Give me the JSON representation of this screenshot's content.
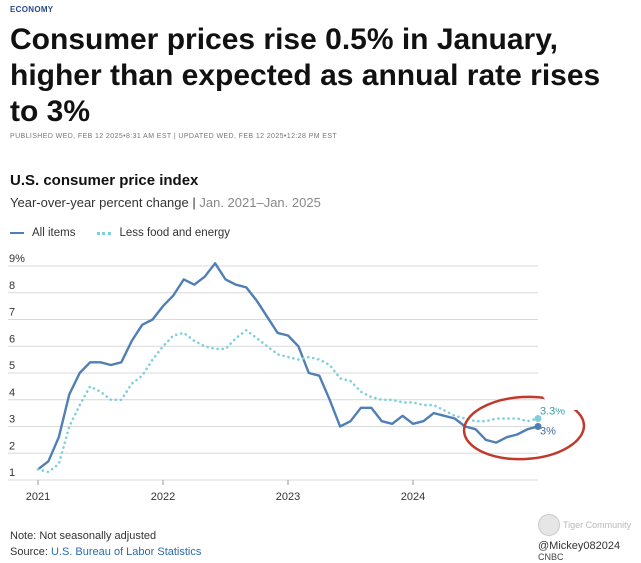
{
  "article": {
    "section": "ECONOMY",
    "headline": "Consumer prices rise 0.5% in January, higher than expected as annual rate rises to 3%",
    "dateline": "PUBLISHED WED, FEB 12 2025•8:31 AM EST | UPDATED WED, FEB 12 2025•12:28 PM EST"
  },
  "chart": {
    "title": "U.S. consumer price index",
    "subtitle": "Year-over-year percent change",
    "subtitle_separator": " | ",
    "subtitle_range": "Jan. 2021–Jan. 2025",
    "note": "Note: Not seasonally adjusted",
    "source_label": "Source: ",
    "source_link": "U.S. Bureau of Labor Statistics"
  },
  "overlays": {
    "watermark": "Tiger Community",
    "username": "@Mickey082024",
    "logo": "CNBC"
  },
  "colors": {
    "all_items": "#4f7fb5",
    "core": "#7ed0dc",
    "highlight_circle": "#c0392b",
    "grid": "#d9d9d9",
    "headline": "#111111"
  },
  "chart_data": {
    "type": "line",
    "title": "U.S. consumer price index",
    "subtitle": "Year-over-year percent change | Jan. 2021–Jan. 2025",
    "xlabel": "",
    "ylabel": "",
    "x_ticks": [
      2021,
      2022,
      2023,
      2024
    ],
    "y_ticks": [
      1,
      2,
      3,
      4,
      5,
      6,
      7,
      8,
      9
    ],
    "y_tick_labels": [
      "1",
      "2",
      "3",
      "4",
      "5",
      "6",
      "7",
      "8",
      "9%"
    ],
    "ylim": [
      1,
      9
    ],
    "xlim": [
      2021.0,
      2025.0
    ],
    "grid": true,
    "legend_position": "top-left",
    "x": [
      2021.0,
      2021.0833,
      2021.1667,
      2021.25,
      2021.3333,
      2021.4167,
      2021.5,
      2021.5833,
      2021.6667,
      2021.75,
      2021.8333,
      2021.9167,
      2022.0,
      2022.0833,
      2022.1667,
      2022.25,
      2022.3333,
      2022.4167,
      2022.5,
      2022.5833,
      2022.6667,
      2022.75,
      2022.8333,
      2022.9167,
      2023.0,
      2023.0833,
      2023.1667,
      2023.25,
      2023.3333,
      2023.4167,
      2023.5,
      2023.5833,
      2023.6667,
      2023.75,
      2023.8333,
      2023.9167,
      2024.0,
      2024.0833,
      2024.1667,
      2024.25,
      2024.3333,
      2024.4167,
      2024.5,
      2024.5833,
      2024.6667,
      2024.75,
      2024.8333,
      2024.9167,
      2025.0
    ],
    "series": [
      {
        "name": "All items",
        "style": "solid",
        "values": [
          1.4,
          1.7,
          2.6,
          4.2,
          5.0,
          5.4,
          5.4,
          5.3,
          5.4,
          6.2,
          6.8,
          7.0,
          7.5,
          7.9,
          8.5,
          8.3,
          8.6,
          9.1,
          8.5,
          8.3,
          8.2,
          7.7,
          7.1,
          6.5,
          6.4,
          6.0,
          5.0,
          4.9,
          4.0,
          3.0,
          3.2,
          3.7,
          3.7,
          3.2,
          3.1,
          3.4,
          3.1,
          3.2,
          3.5,
          3.4,
          3.3,
          3.0,
          2.9,
          2.5,
          2.4,
          2.6,
          2.7,
          2.9,
          3.0
        ],
        "end_label": "3%"
      },
      {
        "name": "Less food and energy",
        "style": "dotted",
        "values": [
          1.4,
          1.3,
          1.6,
          3.0,
          3.8,
          4.5,
          4.3,
          4.0,
          4.0,
          4.6,
          4.9,
          5.5,
          6.0,
          6.4,
          6.5,
          6.2,
          6.0,
          5.9,
          5.9,
          6.3,
          6.6,
          6.3,
          6.0,
          5.7,
          5.6,
          5.5,
          5.6,
          5.5,
          5.3,
          4.8,
          4.7,
          4.3,
          4.1,
          4.0,
          4.0,
          3.9,
          3.9,
          3.8,
          3.8,
          3.6,
          3.4,
          3.3,
          3.2,
          3.2,
          3.3,
          3.3,
          3.3,
          3.2,
          3.3
        ],
        "end_label": "3.3%"
      }
    ],
    "annotations": [
      "3.3%",
      "3%"
    ]
  }
}
